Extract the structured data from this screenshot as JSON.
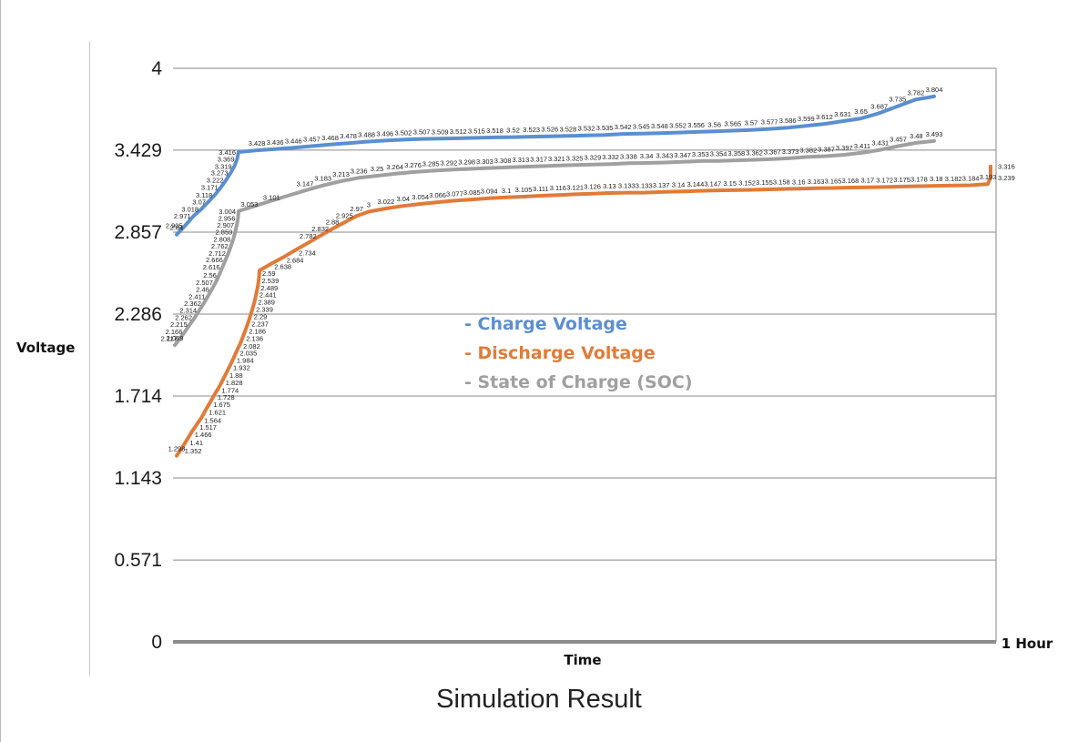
{
  "caption": "Simulation Result",
  "chart_data": {
    "type": "line",
    "xlabel": "Time",
    "ylabel": "Voltage",
    "x_end_label": "1 Hour",
    "ylim": [
      0,
      4
    ],
    "yticks": [
      0,
      0.571,
      1.143,
      1.714,
      2.286,
      2.857,
      3.429,
      4
    ],
    "ytick_labels": [
      "0",
      "0.571",
      "1.143",
      "1.714",
      "2.286",
      "2.857",
      "3.429",
      "4"
    ],
    "grid": true,
    "legend_placement": "center",
    "legend_prefix": "-",
    "series": [
      {
        "name": "Charge Voltage",
        "color": "#5b8fd0",
        "values": [
          2.84,
          2.905,
          2.971,
          3.018,
          3.07,
          3.118,
          3.171,
          3.222,
          3.273,
          3.319,
          3.369,
          3.416,
          3.428,
          3.436,
          3.446,
          3.457,
          3.468,
          3.478,
          3.488,
          3.496,
          3.502,
          3.507,
          3.509,
          3.512,
          3.515,
          3.518,
          3.52,
          3.523,
          3.526,
          3.528,
          3.532,
          3.535,
          3.542,
          3.545,
          3.548,
          3.552,
          3.556,
          3.56,
          3.565,
          3.57,
          3.577,
          3.586,
          3.599,
          3.612,
          3.631,
          3.65,
          3.687,
          3.735,
          3.782,
          3.804
        ]
      },
      {
        "name": "Discharge Voltage",
        "color": "#e07b39",
        "values": [
          1.298,
          1.352,
          1.41,
          1.466,
          1.517,
          1.564,
          1.621,
          1.675,
          1.728,
          1.774,
          1.828,
          1.88,
          1.932,
          1.984,
          2.035,
          2.082,
          2.136,
          2.186,
          2.237,
          2.29,
          2.339,
          2.389,
          2.441,
          2.489,
          2.539,
          2.59,
          2.638,
          2.684,
          2.734,
          2.782,
          2.832,
          2.88,
          2.925,
          2.97,
          3,
          3.022,
          3.04,
          3.054,
          3.066,
          3.077,
          3.085,
          3.094,
          3.1,
          3.105,
          3.111,
          3.116,
          3.121,
          3.126,
          3.13,
          3.133,
          3.133,
          3.137,
          3.14,
          3.144,
          3.147,
          3.15,
          3.152,
          3.155,
          3.158,
          3.16,
          3.163,
          3.165,
          3.168,
          3.17,
          3.172,
          3.175,
          3.178,
          3.18,
          3.182,
          3.184,
          3.193,
          3.239,
          3.316
        ]
      },
      {
        "name": "State of Charge (SOC)",
        "color": "#a0a0a0",
        "values": [
          2.069,
          2.117,
          2.166,
          2.215,
          2.262,
          2.314,
          2.362,
          2.411,
          2.46,
          2.507,
          2.56,
          2.616,
          2.666,
          2.712,
          2.762,
          2.808,
          2.859,
          2.907,
          2.956,
          3.004,
          3.053,
          3.101,
          3.147,
          3.183,
          3.213,
          3.236,
          3.25,
          3.264,
          3.276,
          3.285,
          3.292,
          3.298,
          3.303,
          3.308,
          3.313,
          3.317,
          3.321,
          3.325,
          3.329,
          3.332,
          3.338,
          3.34,
          3.343,
          3.347,
          3.353,
          3.354,
          3.358,
          3.362,
          3.367,
          3.373,
          3.382,
          3.387,
          3.397,
          3.411,
          3.431,
          3.457,
          3.48,
          3.493
        ]
      }
    ]
  }
}
